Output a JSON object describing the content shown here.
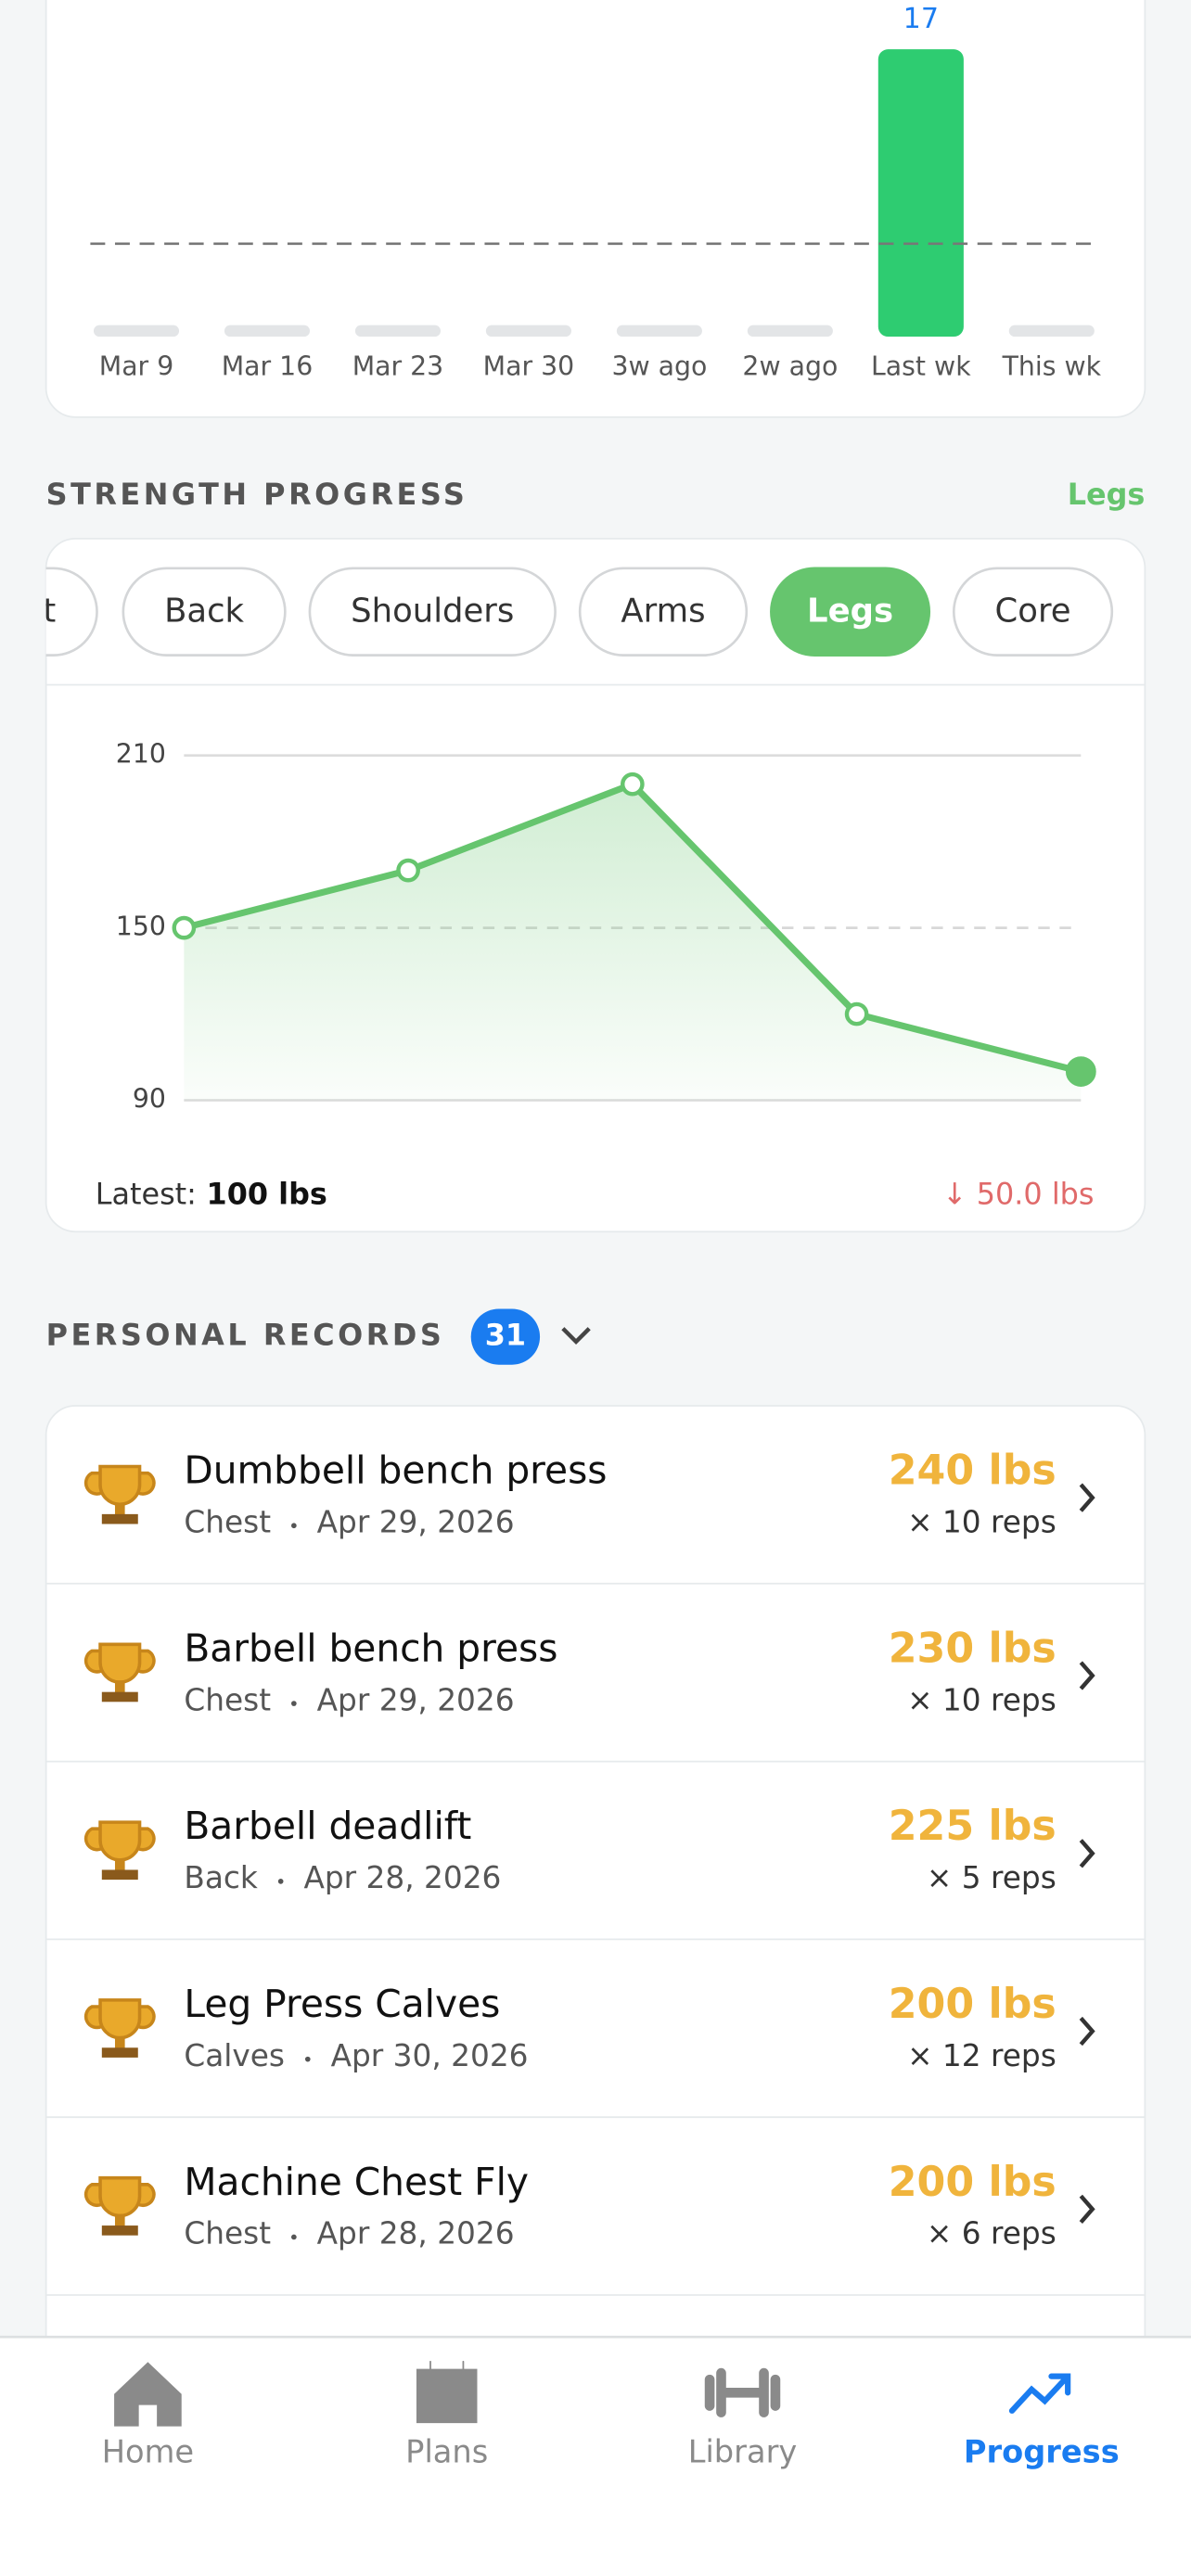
{
  "weekly_chart": {
    "type": "bar",
    "categories": [
      "Mar 9",
      "Mar 16",
      "Mar 23",
      "Mar 30",
      "3w ago",
      "2w ago",
      "Last wk",
      "This wk"
    ],
    "values": [
      0,
      0,
      0,
      0,
      0,
      0,
      17,
      0
    ],
    "ylim": [
      0,
      17
    ],
    "reference_line": 5.5,
    "color": "#2ecc71",
    "label_color": "#1a7cf0"
  },
  "strength": {
    "title": "STRENGTH PROGRESS",
    "selected": "Legs",
    "filters": [
      "Chest",
      "Back",
      "Shoulders",
      "Arms",
      "Legs",
      "Core"
    ],
    "chart": {
      "type": "line",
      "categories": [
        null,
        null,
        null,
        null,
        null
      ],
      "values": [
        150,
        170,
        200,
        120,
        100
      ],
      "ylim": [
        90,
        210
      ],
      "yticks": [
        90,
        150,
        210
      ],
      "color": "#66c56e"
    },
    "latest_label": "Latest:",
    "latest_value": "100 lbs",
    "change": "↓ 50.0 lbs"
  },
  "records": {
    "title": "PERSONAL RECORDS",
    "count": 31,
    "items": [
      {
        "name": "Dumbbell bench press",
        "category": "Chest",
        "date": "Apr 29, 2026",
        "weight": "240 lbs",
        "reps": "× 10 reps"
      },
      {
        "name": "Barbell bench press",
        "category": "Chest",
        "date": "Apr 29, 2026",
        "weight": "230 lbs",
        "reps": "× 10 reps"
      },
      {
        "name": "Barbell deadlift",
        "category": "Back",
        "date": "Apr 28, 2026",
        "weight": "225 lbs",
        "reps": "× 5 reps"
      },
      {
        "name": "Leg Press Calves",
        "category": "Calves",
        "date": "Apr 30, 2026",
        "weight": "200 lbs",
        "reps": "× 12 reps"
      },
      {
        "name": "Machine Chest Fly",
        "category": "Chest",
        "date": "Apr 28, 2026",
        "weight": "200 lbs",
        "reps": "× 6 reps"
      }
    ]
  },
  "nav": {
    "items": [
      "Home",
      "Plans",
      "Library",
      "Progress"
    ],
    "active": "Progress"
  }
}
